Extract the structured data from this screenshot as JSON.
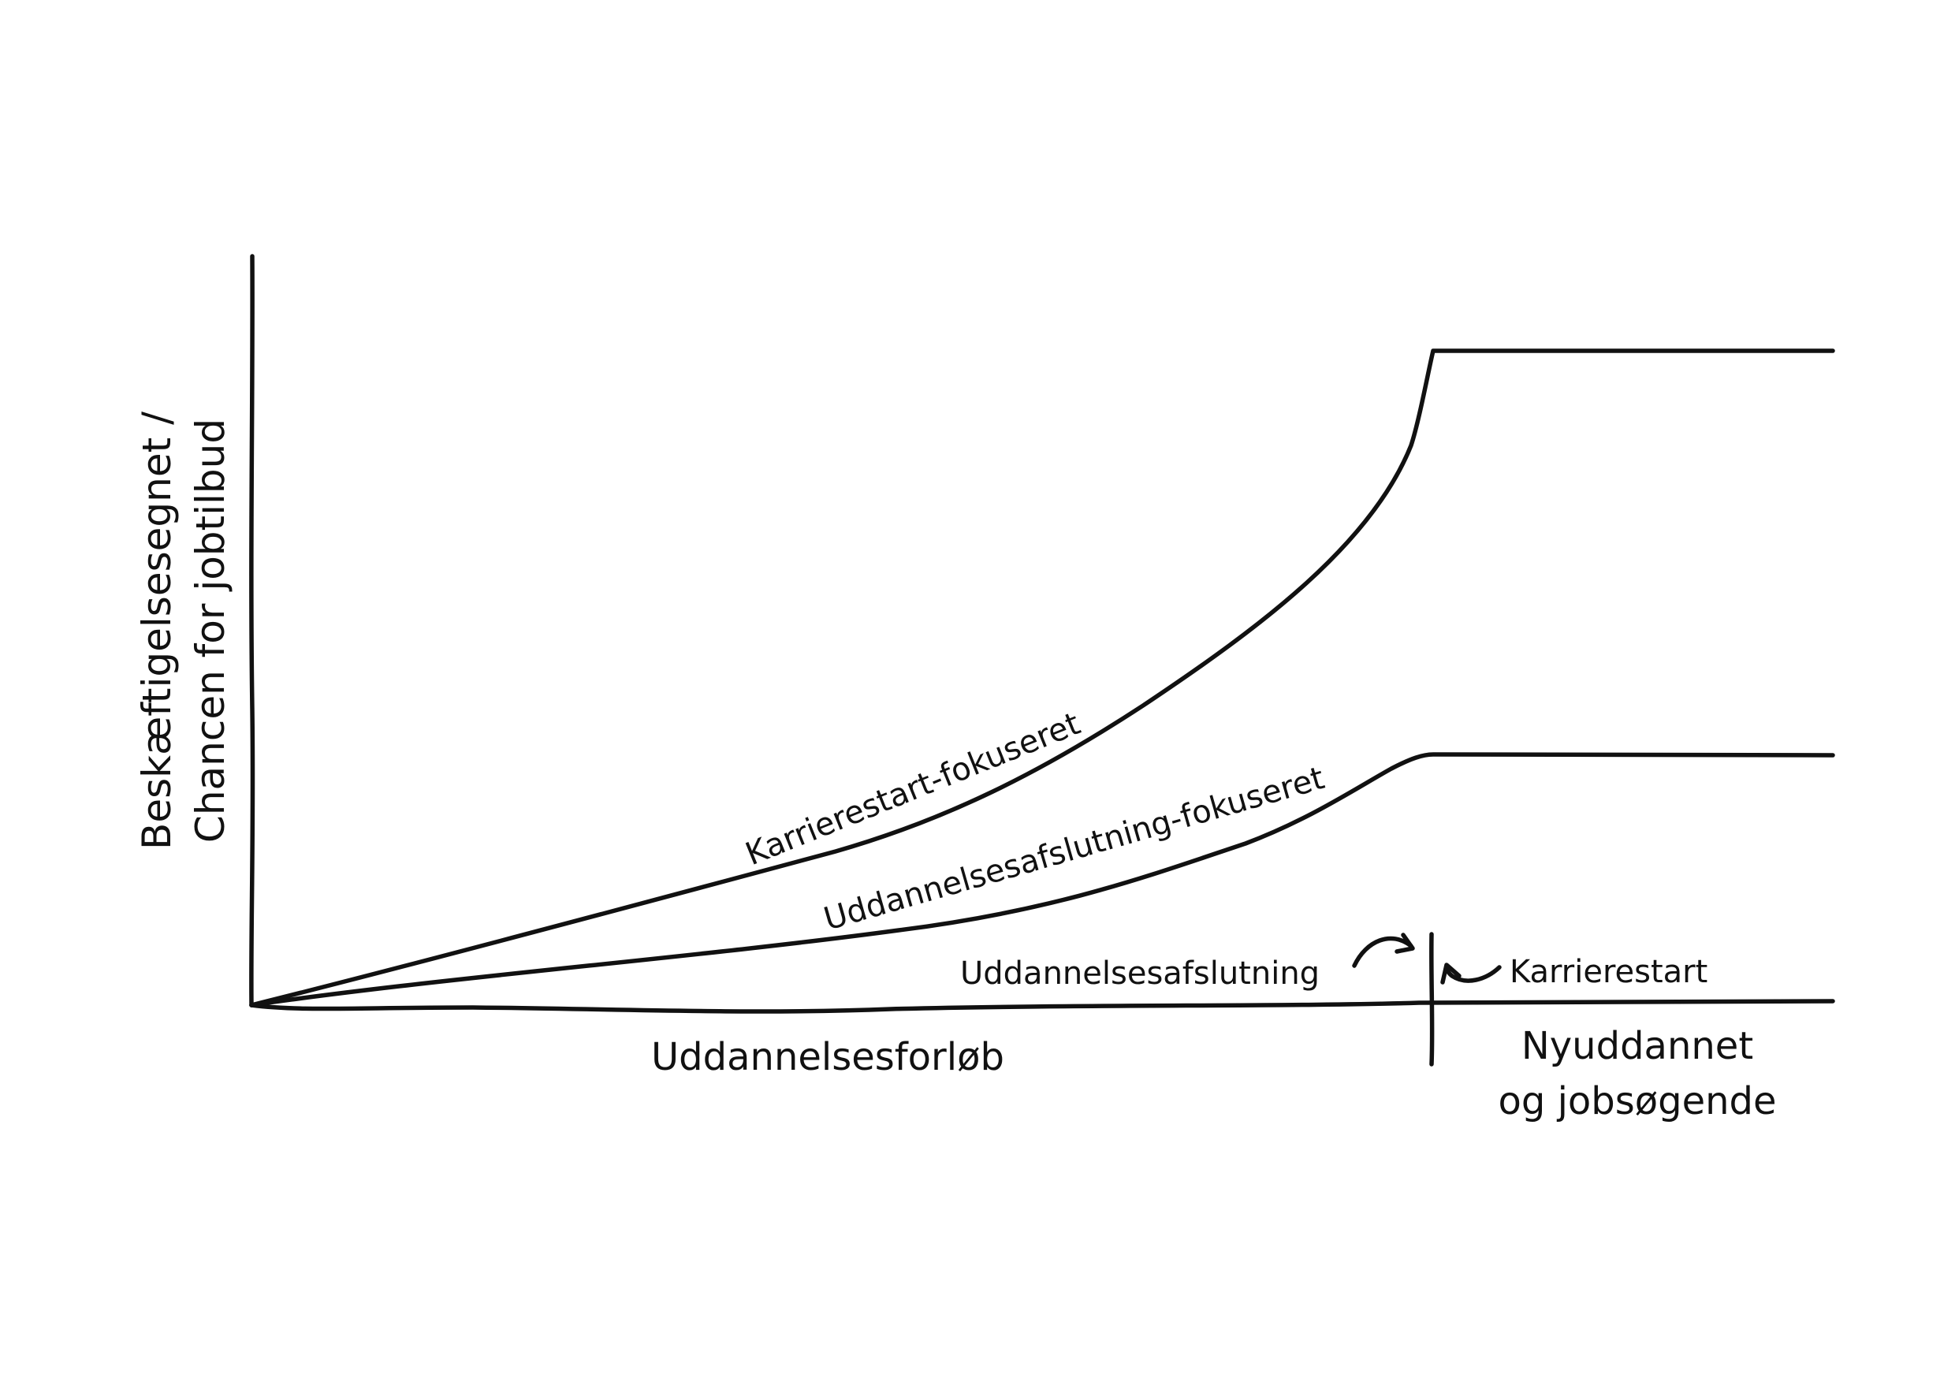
{
  "diagram": {
    "y_axis_label": {
      "line1": "Beskæftigelsesegnet /",
      "line2": "Chancen for jobtilbud"
    },
    "x_axis_label": "Uddannelsesforløb",
    "right_region_label": {
      "line1": "Nyuddannet",
      "line2": "og jobsøgende"
    },
    "curves": [
      {
        "name": "Karrierestart-fokuseret",
        "level": "high"
      },
      {
        "name": "Uddannelsesafslutning-fokuseret",
        "level": "medium"
      }
    ],
    "markers": {
      "left": "Uddannelsesafslutning",
      "right": "Karrierestart"
    },
    "ink_color": "#111111",
    "background_color": "#ffffff"
  }
}
